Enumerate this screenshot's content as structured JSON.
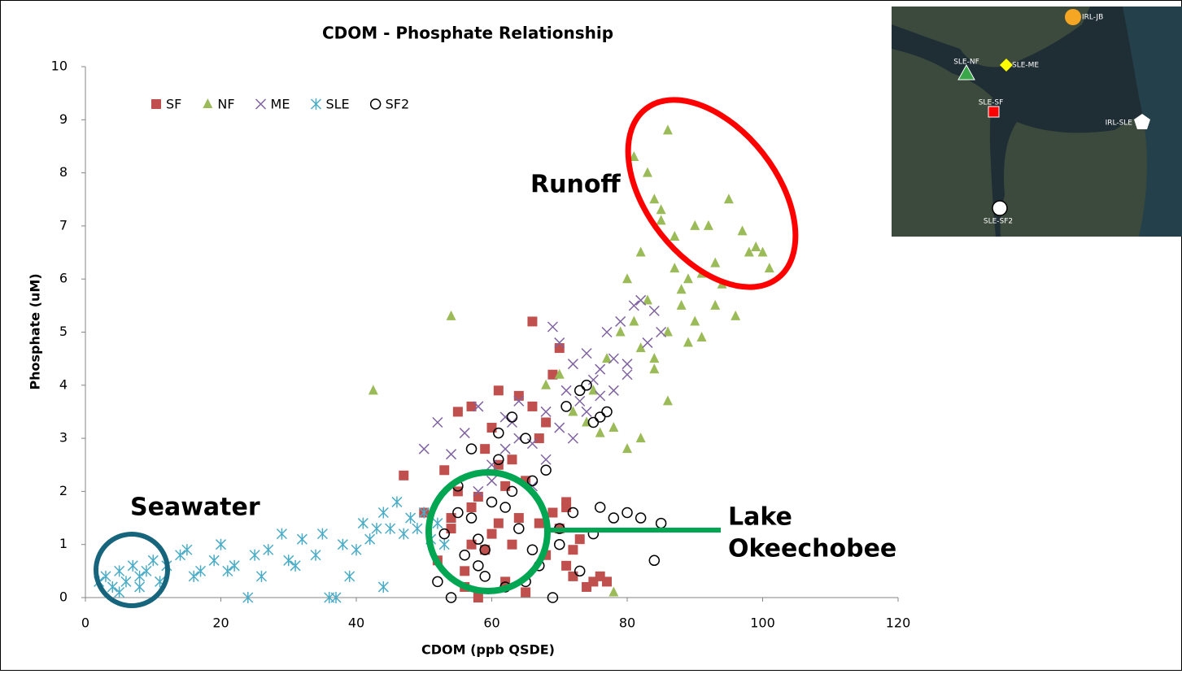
{
  "chart_data": {
    "type": "scatter",
    "title": "CDOM - Phosphate Relationship",
    "x_label": "CDOM (ppb QSDE)",
    "y_label": "Phosphate (uM)",
    "xlim": [
      0,
      120
    ],
    "xticks": [
      0,
      20,
      40,
      60,
      80,
      100,
      120
    ],
    "ylim": [
      0,
      10
    ],
    "yticks": [
      0,
      1,
      2,
      3,
      4,
      5,
      6,
      7,
      8,
      9,
      10
    ],
    "legend": "top-left",
    "series": [
      {
        "name": "SF",
        "color": "#c0504d",
        "marker": "square",
        "x": [
          47,
          50,
          52,
          53,
          54,
          55,
          56,
          57,
          58,
          59,
          60,
          61,
          62,
          63,
          64,
          65,
          66,
          67,
          68,
          69,
          70,
          71,
          72,
          73,
          74,
          75,
          76,
          77,
          55,
          57,
          59,
          61,
          63,
          65,
          67,
          69,
          71,
          56,
          58,
          60,
          62,
          64,
          54,
          68,
          70,
          72,
          57,
          61,
          66,
          71
        ],
        "values": [
          2.3,
          1.6,
          0.7,
          2.4,
          1.5,
          3.5,
          0.5,
          3.6,
          1.9,
          2.8,
          1.2,
          3.9,
          0.3,
          2.6,
          3.8,
          2.2,
          5.2,
          1.4,
          3.3,
          4.2,
          4.7,
          1.8,
          0.4,
          1.1,
          0.2,
          0.3,
          0.4,
          0.3,
          2.0,
          1.7,
          0.9,
          2.5,
          1.0,
          0.1,
          3.0,
          1.6,
          0.6,
          0.2,
          0.0,
          3.2,
          2.1,
          1.5,
          1.3,
          0.8,
          1.3,
          0.9,
          1.0,
          1.4,
          3.6,
          1.7
        ]
      },
      {
        "name": "NF",
        "color": "#9bbb59",
        "marker": "triangle",
        "x": [
          42.5,
          54,
          68,
          70,
          72,
          74,
          75,
          76,
          77,
          78,
          79,
          80,
          81,
          82,
          83,
          84,
          85,
          86,
          87,
          88,
          89,
          90,
          91,
          92,
          93,
          94,
          95,
          96,
          97,
          98,
          99,
          100,
          101,
          81,
          82,
          83,
          84,
          85,
          86,
          87,
          89,
          91,
          78,
          80,
          82,
          84,
          86,
          88,
          90,
          93
        ],
        "values": [
          3.9,
          5.3,
          4.0,
          4.2,
          3.5,
          3.3,
          3.9,
          3.1,
          4.5,
          0.1,
          5.0,
          6.0,
          8.3,
          6.5,
          8.0,
          7.5,
          7.1,
          8.8,
          6.8,
          5.5,
          6.0,
          7.0,
          6.1,
          7.0,
          5.5,
          5.9,
          7.5,
          5.3,
          6.9,
          6.5,
          6.6,
          6.5,
          6.2,
          5.2,
          4.7,
          5.6,
          4.3,
          7.3,
          3.7,
          6.2,
          4.8,
          4.9,
          3.2,
          2.8,
          3.0,
          4.5,
          5.0,
          5.8,
          5.2,
          6.3
        ]
      },
      {
        "name": "ME",
        "color": "#8064a2",
        "marker": "x",
        "x": [
          50,
          52,
          54,
          56,
          58,
          60,
          62,
          64,
          66,
          68,
          69,
          70,
          71,
          72,
          73,
          74,
          75,
          76,
          77,
          78,
          79,
          80,
          81,
          82,
          83,
          84,
          85,
          60,
          62,
          64,
          66,
          68,
          70,
          72,
          74,
          76,
          78,
          80,
          58,
          63
        ],
        "values": [
          2.8,
          3.3,
          2.7,
          3.1,
          3.6,
          2.5,
          3.4,
          3.7,
          2.9,
          3.5,
          5.1,
          4.8,
          3.9,
          4.4,
          3.7,
          4.6,
          4.1,
          4.3,
          5.0,
          4.5,
          5.2,
          4.2,
          5.5,
          5.6,
          4.8,
          5.4,
          5.0,
          2.2,
          2.8,
          3.0,
          2.1,
          2.6,
          3.2,
          3.0,
          3.5,
          3.8,
          3.9,
          4.4,
          2.0,
          3.3
        ]
      },
      {
        "name": "SLE",
        "color": "#4bacc6",
        "marker": "asterisk",
        "x": [
          2,
          3,
          4,
          5,
          6,
          7,
          8,
          9,
          10,
          12,
          14,
          15,
          17,
          19,
          20,
          22,
          24,
          25,
          27,
          29,
          30,
          32,
          34,
          35,
          37,
          38,
          40,
          41,
          42,
          43,
          44,
          45,
          46,
          47,
          48,
          49,
          50,
          51,
          52,
          53,
          5,
          8,
          11,
          16,
          21,
          26,
          31,
          36,
          39,
          44
        ],
        "values": [
          0.3,
          0.4,
          0.2,
          0.5,
          0.3,
          0.6,
          0.4,
          0.5,
          0.7,
          0.6,
          0.8,
          0.9,
          0.5,
          0.7,
          1.0,
          0.6,
          0.0,
          0.8,
          0.9,
          1.2,
          0.7,
          1.1,
          0.8,
          1.2,
          0.0,
          1.0,
          0.9,
          1.4,
          1.1,
          1.3,
          1.6,
          1.3,
          1.8,
          1.2,
          1.5,
          1.3,
          1.6,
          1.1,
          1.4,
          1.0,
          0.1,
          0.2,
          0.3,
          0.4,
          0.5,
          0.4,
          0.6,
          0.0,
          0.4,
          0.2
        ]
      },
      {
        "name": "SF2",
        "color": "#000000",
        "marker": "circle",
        "x": [
          52,
          53,
          54,
          55,
          56,
          57,
          58,
          59,
          60,
          61,
          62,
          63,
          64,
          65,
          66,
          67,
          68,
          69,
          70,
          71,
          72,
          73,
          74,
          75,
          76,
          77,
          78,
          80,
          82,
          84,
          85,
          57,
          59,
          61,
          63,
          65,
          73,
          75,
          76,
          55,
          58,
          62,
          66,
          70
        ],
        "values": [
          0.3,
          1.2,
          0.0,
          2.1,
          0.8,
          1.5,
          1.1,
          0.4,
          1.8,
          2.6,
          0.2,
          3.4,
          1.3,
          3.0,
          2.2,
          0.6,
          2.4,
          0.0,
          1.0,
          3.6,
          1.6,
          0.5,
          4.0,
          3.3,
          1.7,
          3.5,
          1.5,
          1.6,
          1.5,
          0.7,
          1.4,
          2.8,
          0.9,
          3.1,
          2.0,
          0.3,
          3.9,
          1.2,
          3.4,
          1.6,
          0.6,
          1.7,
          0.9,
          1.3
        ]
      }
    ],
    "annotations": [
      "Runoff",
      "Seawater",
      [
        "Lake",
        "Okeechobee"
      ]
    ],
    "inset_labels": [
      "IRL-JB",
      "SLE-NF",
      "SLE-ME",
      "SLE-SF",
      "IRL-SLE",
      "SLE-SF2"
    ]
  }
}
